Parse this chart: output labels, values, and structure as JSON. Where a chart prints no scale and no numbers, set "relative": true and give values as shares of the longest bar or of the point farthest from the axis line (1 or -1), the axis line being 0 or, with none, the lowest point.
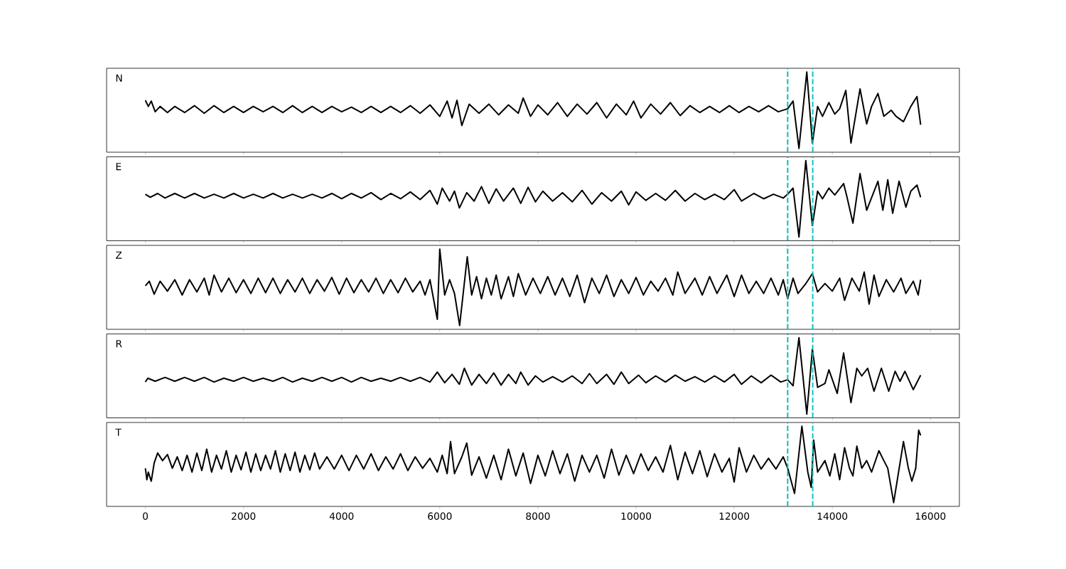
{
  "chart_data": [
    {
      "type": "line",
      "title": "N",
      "color": "#000000",
      "relative": true,
      "xlim": [
        -790,
        16590
      ],
      "xticks": [
        0,
        2000,
        4000,
        6000,
        8000,
        10000,
        12000,
        14000,
        16000
      ],
      "tick_labels": false,
      "ref_lines": [
        {
          "axis": "x",
          "value": 13090,
          "color": "#00bfbf",
          "line_style": "dashed"
        },
        {
          "axis": "x",
          "value": 13600,
          "color": "#00bfbf",
          "line_style": "dashed"
        }
      ],
      "x": [
        0,
        60,
        120,
        200,
        300,
        450,
        600,
        800,
        1000,
        1200,
        1400,
        1600,
        1800,
        2000,
        2200,
        2400,
        2600,
        2800,
        3000,
        3200,
        3400,
        3600,
        3800,
        4000,
        4200,
        4400,
        4600,
        4800,
        5000,
        5200,
        5400,
        5600,
        5800,
        6000,
        6150,
        6250,
        6350,
        6450,
        6600,
        6800,
        7000,
        7200,
        7400,
        7600,
        7700,
        7850,
        8000,
        8200,
        8400,
        8600,
        8800,
        9000,
        9200,
        9400,
        9600,
        9800,
        9950,
        10100,
        10300,
        10500,
        10700,
        10900,
        11100,
        11300,
        11500,
        11700,
        11900,
        12100,
        12300,
        12500,
        12700,
        12900,
        13090,
        13200,
        13320,
        13480,
        13594,
        13700,
        13800,
        13930,
        14050,
        14150,
        14275,
        14380,
        14565,
        14700,
        14800,
        14930,
        15050,
        15200,
        15300,
        15450,
        15600,
        15725,
        15800
      ],
      "values": [
        0.63,
        0.55,
        0.62,
        0.48,
        0.55,
        0.47,
        0.55,
        0.47,
        0.56,
        0.46,
        0.56,
        0.47,
        0.55,
        0.47,
        0.55,
        0.48,
        0.55,
        0.47,
        0.56,
        0.47,
        0.55,
        0.47,
        0.55,
        0.48,
        0.54,
        0.47,
        0.55,
        0.47,
        0.55,
        0.47,
        0.56,
        0.46,
        0.57,
        0.42,
        0.62,
        0.4,
        0.63,
        0.3,
        0.58,
        0.46,
        0.58,
        0.44,
        0.57,
        0.46,
        0.66,
        0.42,
        0.57,
        0.44,
        0.6,
        0.42,
        0.58,
        0.45,
        0.6,
        0.4,
        0.58,
        0.44,
        0.62,
        0.4,
        0.58,
        0.45,
        0.6,
        0.43,
        0.56,
        0.47,
        0.55,
        0.47,
        0.56,
        0.47,
        0.55,
        0.48,
        0.56,
        0.48,
        0.52,
        0.62,
        0.0,
        1.0,
        0.07,
        0.55,
        0.42,
        0.6,
        0.45,
        0.52,
        0.76,
        0.07,
        0.78,
        0.32,
        0.55,
        0.72,
        0.42,
        0.5,
        0.42,
        0.35,
        0.55,
        0.68,
        0.31
      ]
    },
    {
      "type": "line",
      "title": "E",
      "color": "#000000",
      "relative": true,
      "xlim": [
        -790,
        16590
      ],
      "xticks": [
        0,
        2000,
        4000,
        6000,
        8000,
        10000,
        12000,
        14000,
        16000
      ],
      "tick_labels": false,
      "ref_lines": [
        {
          "axis": "x",
          "value": 13090,
          "color": "#00bfbf",
          "line_style": "dashed"
        },
        {
          "axis": "x",
          "value": 13600,
          "color": "#00bfbf",
          "line_style": "dashed"
        }
      ],
      "x": [
        0,
        100,
        250,
        400,
        600,
        800,
        1000,
        1200,
        1400,
        1600,
        1800,
        2000,
        2200,
        2400,
        2600,
        2800,
        3000,
        3200,
        3400,
        3600,
        3800,
        4000,
        4200,
        4400,
        4600,
        4800,
        5000,
        5200,
        5400,
        5600,
        5800,
        5950,
        6050,
        6200,
        6300,
        6400,
        6550,
        6700,
        6850,
        7000,
        7150,
        7300,
        7500,
        7650,
        7800,
        7950,
        8100,
        8300,
        8500,
        8700,
        8900,
        9100,
        9300,
        9500,
        9700,
        9850,
        10000,
        10200,
        10400,
        10600,
        10800,
        11000,
        11200,
        11400,
        11600,
        11800,
        12000,
        12150,
        12400,
        12600,
        12800,
        13000,
        13090,
        13200,
        13320,
        13460,
        13594,
        13700,
        13800,
        13930,
        14050,
        14230,
        14300,
        14420,
        14565,
        14700,
        14930,
        15030,
        15130,
        15230,
        15360,
        15500,
        15600,
        15725,
        15800
      ],
      "values": [
        0.56,
        0.52,
        0.57,
        0.51,
        0.57,
        0.51,
        0.57,
        0.51,
        0.56,
        0.51,
        0.57,
        0.51,
        0.56,
        0.51,
        0.57,
        0.51,
        0.56,
        0.51,
        0.56,
        0.51,
        0.57,
        0.5,
        0.57,
        0.51,
        0.58,
        0.49,
        0.57,
        0.5,
        0.59,
        0.49,
        0.61,
        0.43,
        0.64,
        0.47,
        0.6,
        0.38,
        0.58,
        0.47,
        0.66,
        0.44,
        0.63,
        0.47,
        0.64,
        0.44,
        0.65,
        0.46,
        0.6,
        0.47,
        0.58,
        0.46,
        0.61,
        0.43,
        0.58,
        0.47,
        0.6,
        0.42,
        0.59,
        0.48,
        0.57,
        0.48,
        0.61,
        0.47,
        0.57,
        0.49,
        0.56,
        0.49,
        0.62,
        0.47,
        0.57,
        0.5,
        0.56,
        0.51,
        0.56,
        0.64,
        0.0,
        1.0,
        0.15,
        0.6,
        0.5,
        0.64,
        0.55,
        0.7,
        0.52,
        0.18,
        0.83,
        0.35,
        0.73,
        0.35,
        0.75,
        0.31,
        0.73,
        0.39,
        0.6,
        0.68,
        0.52
      ]
    },
    {
      "type": "line",
      "title": "Z",
      "color": "#000000",
      "relative": true,
      "xlim": [
        -790,
        16590
      ],
      "xticks": [
        0,
        2000,
        4000,
        6000,
        8000,
        10000,
        12000,
        14000,
        16000
      ],
      "tick_labels": false,
      "ref_lines": [
        {
          "axis": "x",
          "value": 13090,
          "color": "#00bfbf",
          "line_style": "dashed"
        },
        {
          "axis": "x",
          "value": 13600,
          "color": "#00bfbf",
          "line_style": "dashed"
        }
      ],
      "x": [
        0,
        80,
        180,
        300,
        450,
        600,
        750,
        900,
        1050,
        1200,
        1300,
        1400,
        1550,
        1700,
        1850,
        2000,
        2150,
        2300,
        2450,
        2600,
        2750,
        2900,
        3050,
        3200,
        3350,
        3500,
        3650,
        3800,
        3950,
        4100,
        4250,
        4400,
        4550,
        4700,
        4850,
        5000,
        5150,
        5300,
        5450,
        5600,
        5700,
        5800,
        5950,
        6000,
        6100,
        6200,
        6300,
        6405,
        6560,
        6650,
        6750,
        6850,
        6950,
        7050,
        7150,
        7250,
        7400,
        7500,
        7600,
        7750,
        7900,
        8050,
        8200,
        8350,
        8500,
        8650,
        8800,
        8950,
        9100,
        9250,
        9400,
        9550,
        9700,
        9850,
        10000,
        10150,
        10300,
        10450,
        10600,
        10750,
        10850,
        11000,
        11200,
        11350,
        11500,
        11650,
        11850,
        12000,
        12150,
        12300,
        12450,
        12600,
        12750,
        12900,
        13000,
        13090,
        13200,
        13300,
        13450,
        13594,
        13700,
        13850,
        14000,
        14150,
        14250,
        14400,
        14550,
        14650,
        14750,
        14850,
        14950,
        15100,
        15250,
        15400,
        15500,
        15650,
        15750,
        15800
      ],
      "values": [
        0.52,
        0.58,
        0.41,
        0.58,
        0.45,
        0.6,
        0.4,
        0.6,
        0.44,
        0.62,
        0.4,
        0.66,
        0.44,
        0.62,
        0.43,
        0.6,
        0.42,
        0.62,
        0.43,
        0.62,
        0.42,
        0.6,
        0.44,
        0.62,
        0.42,
        0.6,
        0.45,
        0.63,
        0.41,
        0.62,
        0.43,
        0.6,
        0.44,
        0.62,
        0.42,
        0.6,
        0.43,
        0.62,
        0.44,
        0.58,
        0.4,
        0.6,
        0.08,
        1.0,
        0.4,
        0.6,
        0.42,
        0.0,
        0.9,
        0.4,
        0.64,
        0.35,
        0.62,
        0.4,
        0.66,
        0.35,
        0.64,
        0.38,
        0.68,
        0.4,
        0.62,
        0.42,
        0.64,
        0.4,
        0.62,
        0.38,
        0.66,
        0.3,
        0.62,
        0.42,
        0.66,
        0.38,
        0.6,
        0.42,
        0.63,
        0.4,
        0.58,
        0.45,
        0.62,
        0.4,
        0.7,
        0.42,
        0.62,
        0.4,
        0.64,
        0.42,
        0.66,
        0.38,
        0.66,
        0.42,
        0.58,
        0.42,
        0.62,
        0.4,
        0.6,
        0.35,
        0.62,
        0.42,
        0.54,
        0.68,
        0.44,
        0.55,
        0.45,
        0.62,
        0.33,
        0.62,
        0.45,
        0.7,
        0.28,
        0.66,
        0.38,
        0.6,
        0.44,
        0.62,
        0.42,
        0.58,
        0.4,
        0.6
      ]
    },
    {
      "type": "line",
      "title": "R",
      "color": "#000000",
      "relative": true,
      "xlim": [
        -790,
        16590
      ],
      "xticks": [
        0,
        2000,
        4000,
        6000,
        8000,
        10000,
        12000,
        14000,
        16000
      ],
      "tick_labels": false,
      "ref_lines": [
        {
          "axis": "x",
          "value": 13090,
          "color": "#00bfbf",
          "line_style": "dashed"
        },
        {
          "axis": "x",
          "value": 13600,
          "color": "#00bfbf",
          "line_style": "dashed"
        }
      ],
      "x": [
        0,
        50,
        200,
        400,
        600,
        800,
        1000,
        1200,
        1400,
        1600,
        1800,
        2000,
        2200,
        2400,
        2600,
        2800,
        3000,
        3200,
        3400,
        3600,
        3800,
        4000,
        4200,
        4400,
        4600,
        4800,
        5000,
        5200,
        5400,
        5600,
        5800,
        5950,
        6100,
        6250,
        6400,
        6500,
        6650,
        6800,
        6950,
        7100,
        7250,
        7400,
        7550,
        7650,
        7800,
        7950,
        8100,
        8300,
        8500,
        8700,
        8900,
        9050,
        9200,
        9400,
        9550,
        9700,
        9850,
        10050,
        10200,
        10400,
        10600,
        10800,
        11000,
        11200,
        11400,
        11600,
        11800,
        12000,
        12150,
        12350,
        12550,
        12750,
        12950,
        13090,
        13200,
        13320,
        13480,
        13594,
        13700,
        13850,
        13930,
        14100,
        14230,
        14380,
        14500,
        14600,
        14720,
        14850,
        15000,
        15150,
        15280,
        15380,
        15480,
        15650,
        15800
      ],
      "values": [
        0.42,
        0.47,
        0.43,
        0.48,
        0.43,
        0.48,
        0.43,
        0.48,
        0.42,
        0.47,
        0.43,
        0.48,
        0.43,
        0.47,
        0.43,
        0.48,
        0.42,
        0.47,
        0.43,
        0.48,
        0.43,
        0.48,
        0.42,
        0.48,
        0.43,
        0.47,
        0.43,
        0.48,
        0.43,
        0.48,
        0.42,
        0.55,
        0.41,
        0.52,
        0.39,
        0.6,
        0.38,
        0.52,
        0.4,
        0.54,
        0.38,
        0.52,
        0.4,
        0.55,
        0.38,
        0.5,
        0.42,
        0.49,
        0.42,
        0.5,
        0.4,
        0.53,
        0.4,
        0.52,
        0.39,
        0.55,
        0.4,
        0.51,
        0.41,
        0.5,
        0.42,
        0.51,
        0.43,
        0.49,
        0.42,
        0.5,
        0.42,
        0.52,
        0.39,
        0.5,
        0.41,
        0.51,
        0.42,
        0.45,
        0.37,
        1.0,
        0.0,
        0.85,
        0.35,
        0.4,
        0.58,
        0.27,
        0.8,
        0.15,
        0.6,
        0.5,
        0.6,
        0.3,
        0.6,
        0.3,
        0.56,
        0.43,
        0.56,
        0.32,
        0.51
      ]
    },
    {
      "type": "line",
      "title": "T",
      "color": "#000000",
      "relative": true,
      "xlim": [
        -790,
        16590
      ],
      "xticks": [
        0,
        2000,
        4000,
        6000,
        8000,
        10000,
        12000,
        14000,
        16000
      ],
      "tick_labels": "x",
      "ref_lines": [
        {
          "axis": "x",
          "value": 13090,
          "color": "#00bfbf",
          "line_style": "dashed"
        },
        {
          "axis": "x",
          "value": 13600,
          "color": "#00bfbf",
          "line_style": "dashed"
        }
      ],
      "x": [
        0,
        30,
        60,
        120,
        180,
        250,
        350,
        450,
        550,
        650,
        750,
        850,
        950,
        1050,
        1150,
        1250,
        1350,
        1450,
        1550,
        1650,
        1750,
        1850,
        1950,
        2050,
        2150,
        2250,
        2350,
        2450,
        2550,
        2650,
        2750,
        2850,
        2950,
        3050,
        3150,
        3250,
        3350,
        3450,
        3550,
        3700,
        3850,
        4000,
        4150,
        4300,
        4450,
        4600,
        4750,
        4900,
        5050,
        5200,
        5350,
        5500,
        5650,
        5800,
        5950,
        6050,
        6150,
        6220,
        6300,
        6450,
        6550,
        6650,
        6800,
        6950,
        7100,
        7250,
        7400,
        7550,
        7700,
        7850,
        8000,
        8150,
        8300,
        8450,
        8600,
        8750,
        8900,
        9050,
        9200,
        9350,
        9500,
        9650,
        9800,
        9950,
        10100,
        10250,
        10400,
        10550,
        10700,
        10850,
        11000,
        11150,
        11300,
        11450,
        11600,
        11750,
        11900,
        12000,
        12100,
        12250,
        12400,
        12550,
        12700,
        12850,
        13000,
        13090,
        13230,
        13380,
        13500,
        13570,
        13620,
        13700,
        13850,
        13950,
        14050,
        14150,
        14250,
        14350,
        14420,
        14500,
        14600,
        14700,
        14800,
        14950,
        15050,
        15130,
        15250,
        15350,
        15450,
        15550,
        15620,
        15700,
        15760,
        15800
      ],
      "values": [
        0.45,
        0.3,
        0.4,
        0.28,
        0.52,
        0.65,
        0.55,
        0.63,
        0.45,
        0.6,
        0.42,
        0.62,
        0.4,
        0.65,
        0.42,
        0.7,
        0.4,
        0.62,
        0.44,
        0.68,
        0.4,
        0.62,
        0.43,
        0.66,
        0.4,
        0.64,
        0.42,
        0.62,
        0.44,
        0.68,
        0.4,
        0.64,
        0.42,
        0.66,
        0.4,
        0.62,
        0.43,
        0.65,
        0.44,
        0.6,
        0.44,
        0.62,
        0.42,
        0.62,
        0.44,
        0.64,
        0.42,
        0.6,
        0.44,
        0.64,
        0.42,
        0.6,
        0.45,
        0.58,
        0.4,
        0.62,
        0.38,
        0.8,
        0.38,
        0.6,
        0.78,
        0.36,
        0.6,
        0.32,
        0.62,
        0.3,
        0.7,
        0.35,
        0.65,
        0.25,
        0.62,
        0.35,
        0.68,
        0.38,
        0.64,
        0.28,
        0.62,
        0.4,
        0.62,
        0.32,
        0.7,
        0.36,
        0.62,
        0.38,
        0.64,
        0.42,
        0.6,
        0.4,
        0.75,
        0.3,
        0.66,
        0.38,
        0.68,
        0.34,
        0.64,
        0.4,
        0.58,
        0.27,
        0.72,
        0.4,
        0.62,
        0.44,
        0.58,
        0.44,
        0.6,
        0.45,
        0.12,
        1.0,
        0.4,
        0.2,
        0.82,
        0.4,
        0.55,
        0.35,
        0.64,
        0.3,
        0.72,
        0.45,
        0.35,
        0.74,
        0.45,
        0.55,
        0.4,
        0.68,
        0.55,
        0.45,
        0.0,
        0.4,
        0.8,
        0.45,
        0.28,
        0.45,
        0.95,
        0.88
      ]
    }
  ]
}
